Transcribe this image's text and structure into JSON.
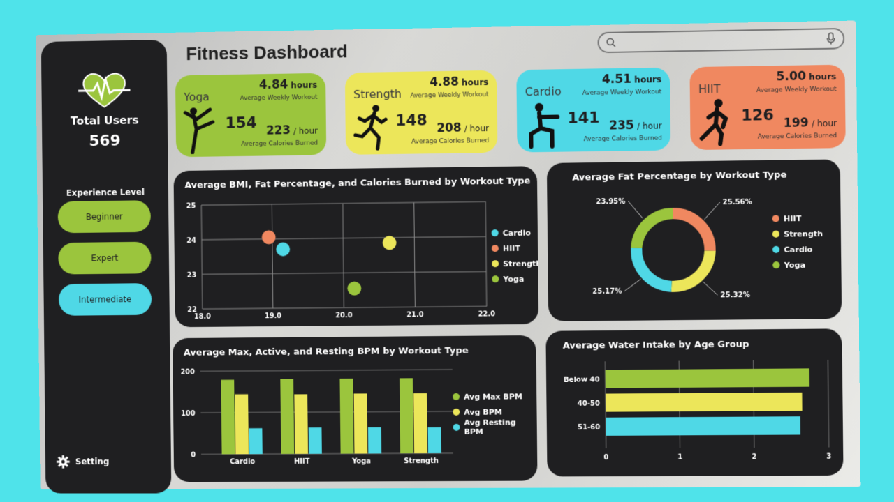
{
  "page": {
    "title": "Fitness Dashboard"
  },
  "sidebar": {
    "total_label": "Total Users",
    "total_value": "569",
    "experience_label": "Experience Level",
    "levels": [
      "Beginner",
      "Expert",
      "Intermediate"
    ],
    "setting_label": "Setting"
  },
  "search": {
    "placeholder": ""
  },
  "colors": {
    "yoga": "#9bc53d",
    "strength": "#ece65a",
    "cardio": "#4fd8e6",
    "hiit": "#f08860",
    "panel": "#1f1f21",
    "background": "#4fe3ea"
  },
  "cards": [
    {
      "name": "Yoga",
      "hours": "4.84",
      "hours_unit": "hours",
      "hours_label": "Average Weekly Workout",
      "users": "154",
      "calories": "223",
      "calories_unit": "/ hour",
      "calories_label": "Average Calories Burned",
      "icon": "yoga-pose-icon"
    },
    {
      "name": "Strength",
      "hours": "4.88",
      "hours_unit": "hours",
      "hours_label": "Average Weekly Workout",
      "users": "148",
      "calories": "208",
      "calories_unit": "/ hour",
      "calories_label": "Average Calories  Burned",
      "icon": "runner-icon"
    },
    {
      "name": "Cardio",
      "hours": "4.51",
      "hours_unit": "hours",
      "hours_label": "Average Weekly Workout",
      "users": "141",
      "calories": "235",
      "calories_unit": "/ hour",
      "calories_label": "Average Calories  Burned",
      "icon": "squat-icon"
    },
    {
      "name": "HIIT",
      "hours": "5.00",
      "hours_unit": "hours",
      "hours_label": "Average Weekly Workout",
      "users": "126",
      "calories": "199",
      "calories_unit": "/ hour",
      "calories_label": "Average Calories  Burned",
      "icon": "athlete-icon"
    }
  ],
  "chart_data": [
    {
      "type": "scatter",
      "title": "Average BMI, Fat Percentage, and Calories Burned by Workout Type",
      "xlim": [
        18.0,
        22.0
      ],
      "ylim": [
        22,
        25
      ],
      "x_ticks": [
        "18.0",
        "19.0",
        "20.0",
        "21.0",
        "22.0"
      ],
      "y_ticks": [
        "22",
        "23",
        "24",
        "25"
      ],
      "grid": true,
      "legend": "right",
      "series": [
        {
          "name": "Cardio",
          "x": 19.15,
          "y": 23.7
        },
        {
          "name": "HIIT",
          "x": 18.95,
          "y": 24.05
        },
        {
          "name": "Strength",
          "x": 20.65,
          "y": 23.85
        },
        {
          "name": "Yoga",
          "x": 20.15,
          "y": 22.55
        }
      ]
    },
    {
      "type": "pie",
      "title": "Average Fat Percentage by Workout Type",
      "legend": "right",
      "slices": [
        {
          "name": "HIIT",
          "value": 25.56,
          "label": "25.56%"
        },
        {
          "name": "Strength",
          "value": 25.32,
          "label": "25.32%"
        },
        {
          "name": "Cardio",
          "value": 25.17,
          "label": "25.17%"
        },
        {
          "name": "Yoga",
          "value": 23.95,
          "label": "23.95%"
        }
      ]
    },
    {
      "type": "bar",
      "title": "Average Max, Active, and Resting BPM by Workout Type",
      "categories": [
        "Cardio",
        "HIIT",
        "Yoga",
        "Strength"
      ],
      "ylim": [
        0,
        200
      ],
      "y_ticks": [
        "0",
        "100",
        "200"
      ],
      "legend": "right",
      "series": [
        {
          "name": "Avg Max BPM",
          "values": [
            179,
            180,
            180,
            180
          ]
        },
        {
          "name": "Avg BPM",
          "values": [
            144,
            143,
            144,
            144
          ]
        },
        {
          "name": "Avg Resting BPM",
          "values": [
            62,
            63,
            63,
            62
          ]
        }
      ]
    },
    {
      "type": "bar",
      "orientation": "horizontal",
      "title": "Average Water Intake by Age Group",
      "categories": [
        "Below 40",
        "40-50",
        "51-60"
      ],
      "xlim": [
        0,
        3
      ],
      "x_ticks": [
        "0",
        "1",
        "2",
        "3"
      ],
      "values": [
        2.75,
        2.65,
        2.62
      ]
    }
  ]
}
